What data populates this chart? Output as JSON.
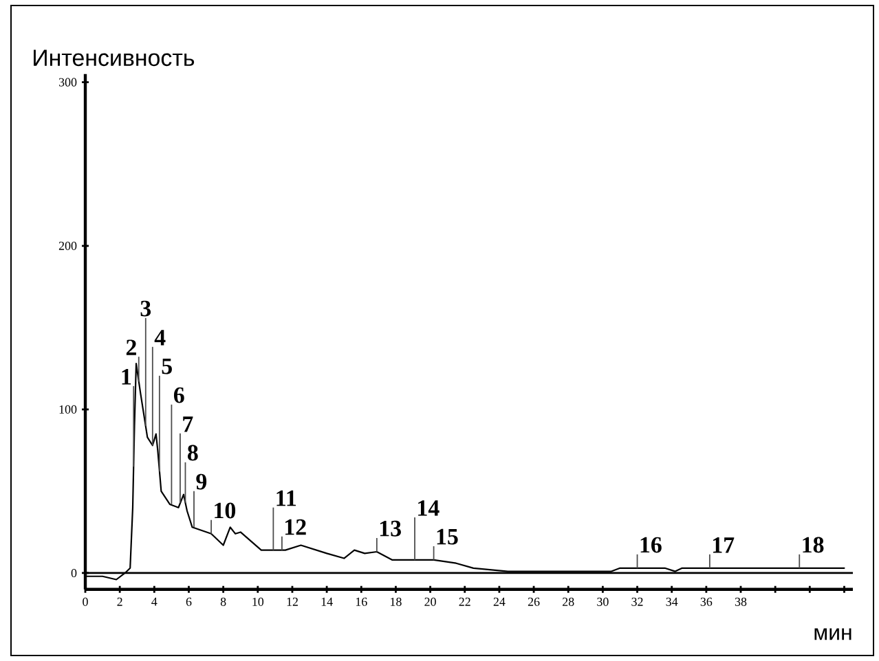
{
  "chart_data": {
    "type": "line",
    "title": "Интенсивность",
    "xlabel": "мин",
    "x": [
      0,
      1,
      1.8,
      2.3,
      2.6,
      2.75,
      2.85,
      2.95,
      3.2,
      3.6,
      3.9,
      4.1,
      4.2,
      4.4,
      4.9,
      5.4,
      5.7,
      5.9,
      6.2,
      7.3,
      8.0,
      8.4,
      8.7,
      9.0,
      10.2,
      11.6,
      12.5,
      14,
      15,
      15.6,
      16.2,
      16.9,
      17.8,
      20.2,
      21.5,
      22.5,
      24.5,
      30.5,
      31,
      33.6,
      34.2,
      34.6,
      44
    ],
    "series": [
      {
        "color": "#000000",
        "values": [
          -2,
          -2,
          -4,
          0,
          3,
          40,
          90,
          128,
          110,
          83,
          78,
          85,
          75,
          50,
          42,
          40,
          48,
          38,
          28,
          24,
          17,
          28,
          24,
          25,
          14,
          14,
          17,
          12,
          9,
          14,
          12,
          13,
          8,
          8,
          6,
          3,
          1,
          1,
          3,
          3,
          1,
          3,
          3
        ]
      }
    ],
    "xlim": [
      0,
      44.5
    ],
    "ylim": [
      -10,
      305
    ],
    "xticks": [
      0,
      2,
      4,
      6,
      8,
      10,
      12,
      14,
      16,
      18,
      20,
      22,
      24,
      26,
      28,
      30,
      32,
      34,
      36,
      38,
      {
        "value": 40,
        "label": null
      },
      {
        "value": 42,
        "label": null
      },
      {
        "value": 44,
        "label": null
      }
    ],
    "yticks": [
      0,
      100,
      200,
      300
    ],
    "ref_lines": [
      {
        "axis": "y",
        "value": 0
      }
    ],
    "marker": "none",
    "line_style": "solid",
    "grid": false,
    "annotations": [
      {
        "text": "1",
        "x": 2.8,
        "y": 65
      },
      {
        "text": "2",
        "x": 3.1,
        "y": 117
      },
      {
        "text": "3",
        "x": 3.5,
        "y": 90
      },
      {
        "text": "4",
        "x": 3.9,
        "y": 78
      },
      {
        "text": "5",
        "x": 4.3,
        "y": 62
      },
      {
        "text": "6",
        "x": 5.0,
        "y": 42
      },
      {
        "text": "7",
        "x": 5.5,
        "y": 43
      },
      {
        "text": "8",
        "x": 5.8,
        "y": 43
      },
      {
        "text": "9",
        "x": 6.3,
        "y": 28
      },
      {
        "text": "10",
        "x": 7.3,
        "y": 24
      },
      {
        "text": "11",
        "x": 10.9,
        "y": 14
      },
      {
        "text": "12",
        "x": 11.4,
        "y": 14
      },
      {
        "text": "13",
        "x": 16.9,
        "y": 13
      },
      {
        "text": "14",
        "x": 19.1,
        "y": 8
      },
      {
        "text": "15",
        "x": 20.2,
        "y": 8
      },
      {
        "text": "16",
        "x": 32.0,
        "y": 3
      },
      {
        "text": "17",
        "x": 36.2,
        "y": 3
      },
      {
        "text": "18",
        "x": 41.4,
        "y": 3
      }
    ]
  }
}
